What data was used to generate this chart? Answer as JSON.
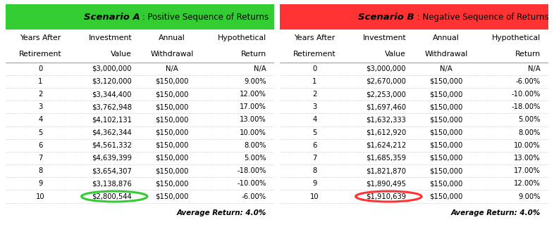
{
  "scenario_a": {
    "title_bold": "Scenario A",
    "title_rest": " : Positive Sequence of Returns",
    "header_color": "#33CC33",
    "circle_color": "#33CC33",
    "headers_line1": [
      "Years After",
      "Investment",
      "Annual",
      "Hypothetical"
    ],
    "headers_line2": [
      "Retirement",
      "Value",
      "Withdrawal",
      "Return"
    ],
    "rows": [
      [
        "0",
        "$3,000,000",
        "N/A",
        "N/A"
      ],
      [
        "1",
        "$3,120,000",
        "$150,000",
        "9.00%"
      ],
      [
        "2",
        "$3,344,400",
        "$150,000",
        "12.00%"
      ],
      [
        "3",
        "$3,762,948",
        "$150,000",
        "17.00%"
      ],
      [
        "4",
        "$4,102,131",
        "$150,000",
        "13.00%"
      ],
      [
        "5",
        "$4,362,344",
        "$150,000",
        "10.00%"
      ],
      [
        "6",
        "$4,561,332",
        "$150,000",
        "8.00%"
      ],
      [
        "7",
        "$4,639,399",
        "$150,000",
        "5.00%"
      ],
      [
        "8",
        "$3,654,307",
        "$150,000",
        "-18.00%"
      ],
      [
        "9",
        "$3,138,876",
        "$150,000",
        "-10.00%"
      ],
      [
        "10",
        "$2,800,544",
        "$150,000",
        "-6.00%"
      ]
    ],
    "footer": "Average Return: 4.0%"
  },
  "scenario_b": {
    "title_bold": "Scenario B",
    "title_rest": " : Negative Sequence of Returns",
    "header_color": "#FF3333",
    "circle_color": "#FF3333",
    "headers_line1": [
      "Years After",
      "Investment",
      "Annual",
      "Hypothetical"
    ],
    "headers_line2": [
      "Retirement",
      "Value",
      "Withdrawal",
      "Return"
    ],
    "rows": [
      [
        "0",
        "$3,000,000",
        "N/A",
        "N/A"
      ],
      [
        "1",
        "$2,670,000",
        "$150,000",
        "-6.00%"
      ],
      [
        "2",
        "$2,253,000",
        "$150,000",
        "-10.00%"
      ],
      [
        "3",
        "$1,697,460",
        "$150,000",
        "-18.00%"
      ],
      [
        "4",
        "$1,632,333",
        "$150,000",
        "5.00%"
      ],
      [
        "5",
        "$1,612,920",
        "$150,000",
        "8.00%"
      ],
      [
        "6",
        "$1,624,212",
        "$150,000",
        "10.00%"
      ],
      [
        "7",
        "$1,685,359",
        "$150,000",
        "13.00%"
      ],
      [
        "8",
        "$1,821,870",
        "$150,000",
        "17.00%"
      ],
      [
        "9",
        "$1,890,495",
        "$150,000",
        "12.00%"
      ],
      [
        "10",
        "$1,910,639",
        "$150,000",
        "9.00%"
      ]
    ],
    "footer": "Average Return: 4.0%"
  },
  "bg_color": "#FFFFFF",
  "row_line_color": "#AAAAAA",
  "text_color": "#000000",
  "font_size": 7.2,
  "title_bold_size": 9.5,
  "title_rest_size": 8.5,
  "header_font_size": 7.8
}
